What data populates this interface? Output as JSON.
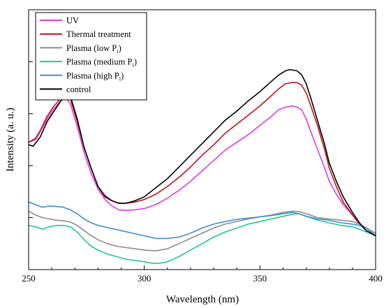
{
  "chart_data": {
    "type": "line",
    "title": "",
    "xlabel": "Wavelength (nm)",
    "ylabel": "Intensity (a. u.)",
    "xlim": [
      250,
      400
    ],
    "ylim": [
      0,
      100
    ],
    "xticks": [
      250,
      300,
      350,
      400
    ],
    "xtick_labels": [
      "250",
      "300",
      "350",
      "400"
    ],
    "yticks": [
      20,
      40,
      60,
      80,
      100
    ],
    "ytick_labels": [],
    "grid": false,
    "legend_position": "top-left",
    "series": [
      {
        "name": "UV",
        "label_main": "UV",
        "label_sub": "",
        "label_suffix": "",
        "color": "#E23BD8",
        "points": [
          [
            250,
            49
          ],
          [
            253,
            50
          ],
          [
            255,
            53
          ],
          [
            258,
            58
          ],
          [
            261,
            62
          ],
          [
            264,
            65
          ],
          [
            266,
            66
          ],
          [
            268,
            64
          ],
          [
            271,
            55
          ],
          [
            274,
            45
          ],
          [
            277,
            37
          ],
          [
            280,
            31
          ],
          [
            283,
            27
          ],
          [
            286,
            24.5
          ],
          [
            289,
            23
          ],
          [
            292,
            22.8
          ],
          [
            296,
            23
          ],
          [
            300,
            23.5
          ],
          [
            305,
            25
          ],
          [
            310,
            27.5
          ],
          [
            315,
            30.5
          ],
          [
            320,
            34
          ],
          [
            325,
            38
          ],
          [
            330,
            42
          ],
          [
            335,
            46
          ],
          [
            340,
            49
          ],
          [
            345,
            52
          ],
          [
            350,
            55.5
          ],
          [
            355,
            59
          ],
          [
            358,
            61.5
          ],
          [
            361,
            62.5
          ],
          [
            364,
            63
          ],
          [
            366,
            62.5
          ],
          [
            368,
            61.5
          ],
          [
            370,
            58
          ],
          [
            372,
            53
          ],
          [
            375,
            46
          ],
          [
            378,
            39
          ],
          [
            380,
            34
          ],
          [
            383,
            29
          ],
          [
            386,
            25
          ],
          [
            390,
            21
          ],
          [
            393,
            17.5
          ],
          [
            396,
            15
          ],
          [
            400,
            13
          ]
        ]
      },
      {
        "name": "Thermal treatment",
        "label_main": "Thermal treatment",
        "label_sub": "",
        "label_suffix": "",
        "color": "#C0121C",
        "points": [
          [
            250,
            49
          ],
          [
            253,
            50.5
          ],
          [
            255,
            53.5
          ],
          [
            258,
            59
          ],
          [
            261,
            63
          ],
          [
            264,
            66
          ],
          [
            266,
            67.5
          ],
          [
            268,
            66
          ],
          [
            271,
            57
          ],
          [
            274,
            47
          ],
          [
            277,
            39
          ],
          [
            280,
            32
          ],
          [
            283,
            28.5
          ],
          [
            286,
            26.5
          ],
          [
            289,
            25.5
          ],
          [
            292,
            25.5
          ],
          [
            296,
            26
          ],
          [
            300,
            27
          ],
          [
            305,
            29
          ],
          [
            310,
            32
          ],
          [
            315,
            35.5
          ],
          [
            320,
            39.5
          ],
          [
            325,
            44
          ],
          [
            330,
            48
          ],
          [
            335,
            52.5
          ],
          [
            340,
            56
          ],
          [
            345,
            59.5
          ],
          [
            350,
            63
          ],
          [
            355,
            67
          ],
          [
            358,
            69.5
          ],
          [
            361,
            71.5
          ],
          [
            364,
            72
          ],
          [
            366,
            72
          ],
          [
            368,
            71
          ],
          [
            370,
            68
          ],
          [
            372,
            63
          ],
          [
            375,
            55
          ],
          [
            378,
            46
          ],
          [
            380,
            39
          ],
          [
            383,
            32
          ],
          [
            386,
            26
          ],
          [
            390,
            21
          ],
          [
            393,
            17.5
          ],
          [
            396,
            15
          ],
          [
            400,
            13
          ]
        ]
      },
      {
        "name": "Plasma (low Pi)",
        "label_main": "Plasma (low P",
        "label_sub": "i",
        "label_suffix": ")",
        "color": "#8C8C8C",
        "points": [
          [
            250,
            22.5
          ],
          [
            253,
            21
          ],
          [
            256,
            20
          ],
          [
            259,
            19.5
          ],
          [
            262,
            19
          ],
          [
            265,
            18.8
          ],
          [
            268,
            18.3
          ],
          [
            271,
            17
          ],
          [
            274,
            15
          ],
          [
            277,
            13
          ],
          [
            280,
            11.5
          ],
          [
            284,
            10
          ],
          [
            288,
            9
          ],
          [
            292,
            8.5
          ],
          [
            296,
            8
          ],
          [
            300,
            7.5
          ],
          [
            305,
            7.2
          ],
          [
            310,
            8
          ],
          [
            315,
            10
          ],
          [
            320,
            12
          ],
          [
            325,
            14
          ],
          [
            330,
            16
          ],
          [
            335,
            17.5
          ],
          [
            340,
            18.5
          ],
          [
            345,
            19.5
          ],
          [
            350,
            20.3
          ],
          [
            355,
            21
          ],
          [
            360,
            22
          ],
          [
            364,
            22.5
          ],
          [
            367,
            22.3
          ],
          [
            370,
            21.5
          ],
          [
            375,
            20
          ],
          [
            380,
            19.5
          ],
          [
            385,
            19
          ],
          [
            390,
            18.5
          ],
          [
            393,
            17.5
          ],
          [
            396,
            16
          ],
          [
            400,
            14
          ]
        ]
      },
      {
        "name": "Plasma (medium Pi)",
        "label_main": "Plasma (medium P",
        "label_sub": "i",
        "label_suffix": ")",
        "color": "#22C49B",
        "points": [
          [
            250,
            17
          ],
          [
            253,
            16.5
          ],
          [
            256,
            15.5
          ],
          [
            259,
            16.5
          ],
          [
            262,
            17
          ],
          [
            265,
            17
          ],
          [
            268,
            16.5
          ],
          [
            271,
            14.5
          ],
          [
            274,
            11.5
          ],
          [
            277,
            9
          ],
          [
            280,
            7.5
          ],
          [
            284,
            6
          ],
          [
            288,
            5
          ],
          [
            292,
            4
          ],
          [
            296,
            3.5
          ],
          [
            300,
            3
          ],
          [
            303,
            2.5
          ],
          [
            306,
            2.3
          ],
          [
            310,
            3
          ],
          [
            315,
            5
          ],
          [
            320,
            7.5
          ],
          [
            325,
            10
          ],
          [
            330,
            12.5
          ],
          [
            335,
            14.5
          ],
          [
            340,
            16
          ],
          [
            345,
            17.5
          ],
          [
            350,
            18.5
          ],
          [
            355,
            19.5
          ],
          [
            360,
            20.5
          ],
          [
            364,
            21.3
          ],
          [
            367,
            21.5
          ],
          [
            370,
            20.5
          ],
          [
            375,
            19
          ],
          [
            380,
            18
          ],
          [
            385,
            17
          ],
          [
            390,
            16.5
          ],
          [
            393,
            15.5
          ],
          [
            396,
            14.5
          ],
          [
            400,
            13
          ]
        ]
      },
      {
        "name": "Plasma (high Pi)",
        "label_main": "Plasma (high P",
        "label_sub": "i",
        "label_suffix": ")",
        "color": "#3B8ED8",
        "points": [
          [
            250,
            26
          ],
          [
            253,
            25
          ],
          [
            256,
            24
          ],
          [
            259,
            24.5
          ],
          [
            262,
            24.3
          ],
          [
            265,
            24
          ],
          [
            268,
            23
          ],
          [
            271,
            21.5
          ],
          [
            274,
            19.5
          ],
          [
            277,
            18
          ],
          [
            280,
            17
          ],
          [
            285,
            16
          ],
          [
            290,
            15
          ],
          [
            295,
            14
          ],
          [
            300,
            13
          ],
          [
            305,
            12
          ],
          [
            310,
            12
          ],
          [
            315,
            12.5
          ],
          [
            320,
            14
          ],
          [
            325,
            16
          ],
          [
            330,
            17.5
          ],
          [
            335,
            18.5
          ],
          [
            340,
            19.3
          ],
          [
            345,
            19.8
          ],
          [
            350,
            20.3
          ],
          [
            355,
            20.8
          ],
          [
            360,
            21.5
          ],
          [
            364,
            22
          ],
          [
            367,
            21.5
          ],
          [
            370,
            20.5
          ],
          [
            375,
            19.5
          ],
          [
            380,
            19
          ],
          [
            385,
            18
          ],
          [
            390,
            17.5
          ],
          [
            393,
            17
          ],
          [
            396,
            16
          ],
          [
            400,
            13
          ]
        ]
      },
      {
        "name": "control",
        "label_main": "control",
        "label_sub": "",
        "label_suffix": "",
        "color": "#000000",
        "points": [
          [
            250,
            48
          ],
          [
            252,
            47.5
          ],
          [
            255,
            51
          ],
          [
            258,
            57
          ],
          [
            261,
            61
          ],
          [
            264,
            65
          ],
          [
            266,
            68.5
          ],
          [
            268,
            67
          ],
          [
            271,
            58
          ],
          [
            274,
            47
          ],
          [
            277,
            39
          ],
          [
            280,
            32
          ],
          [
            283,
            28
          ],
          [
            286,
            26.5
          ],
          [
            289,
            25.5
          ],
          [
            292,
            25.5
          ],
          [
            296,
            26.5
          ],
          [
            300,
            28
          ],
          [
            305,
            31.5
          ],
          [
            310,
            35
          ],
          [
            315,
            39.5
          ],
          [
            320,
            44
          ],
          [
            325,
            48.5
          ],
          [
            330,
            53
          ],
          [
            335,
            57.5
          ],
          [
            340,
            61
          ],
          [
            345,
            65
          ],
          [
            350,
            68.5
          ],
          [
            355,
            72.5
          ],
          [
            358,
            74.8
          ],
          [
            361,
            76.5
          ],
          [
            363,
            77
          ],
          [
            366,
            76.5
          ],
          [
            368,
            75
          ],
          [
            370,
            71.5
          ],
          [
            372,
            66
          ],
          [
            375,
            57
          ],
          [
            378,
            48
          ],
          [
            380,
            41
          ],
          [
            383,
            34
          ],
          [
            386,
            28
          ],
          [
            390,
            22
          ],
          [
            393,
            18
          ],
          [
            396,
            15
          ],
          [
            400,
            13
          ]
        ]
      }
    ]
  }
}
